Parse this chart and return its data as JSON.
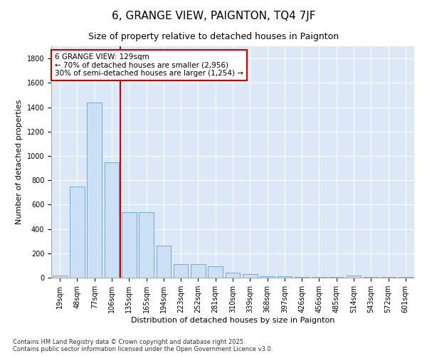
{
  "title": "6, GRANGE VIEW, PAIGNTON, TQ4 7JF",
  "subtitle": "Size of property relative to detached houses in Paignton",
  "xlabel": "Distribution of detached houses by size in Paignton",
  "ylabel": "Number of detached properties",
  "categories": [
    "19sqm",
    "48sqm",
    "77sqm",
    "106sqm",
    "135sqm",
    "165sqm",
    "194sqm",
    "223sqm",
    "252sqm",
    "281sqm",
    "310sqm",
    "339sqm",
    "368sqm",
    "397sqm",
    "426sqm",
    "456sqm",
    "485sqm",
    "514sqm",
    "543sqm",
    "572sqm",
    "601sqm"
  ],
  "values": [
    20,
    750,
    1440,
    950,
    535,
    540,
    265,
    110,
    110,
    95,
    40,
    30,
    10,
    10,
    5,
    5,
    5,
    18,
    5,
    5,
    5
  ],
  "bar_color": "#cce0f5",
  "bar_edge_color": "#6aaed6",
  "red_line_x": 3.5,
  "annotation_text": "6 GRANGE VIEW: 129sqm\n← 70% of detached houses are smaller (2,956)\n30% of semi-detached houses are larger (1,254) →",
  "annotation_box_color": "#ffffff",
  "annotation_box_edge": "#cc0000",
  "ylim": [
    0,
    1900
  ],
  "yticks": [
    0,
    200,
    400,
    600,
    800,
    1000,
    1200,
    1400,
    1600,
    1800
  ],
  "background_color": "#dce8f8",
  "footer": "Contains HM Land Registry data © Crown copyright and database right 2025.\nContains public sector information licensed under the Open Government Licence v3.0.",
  "title_fontsize": 11,
  "subtitle_fontsize": 9,
  "axis_label_fontsize": 8,
  "tick_fontsize": 7,
  "annotation_fontsize": 7.5
}
